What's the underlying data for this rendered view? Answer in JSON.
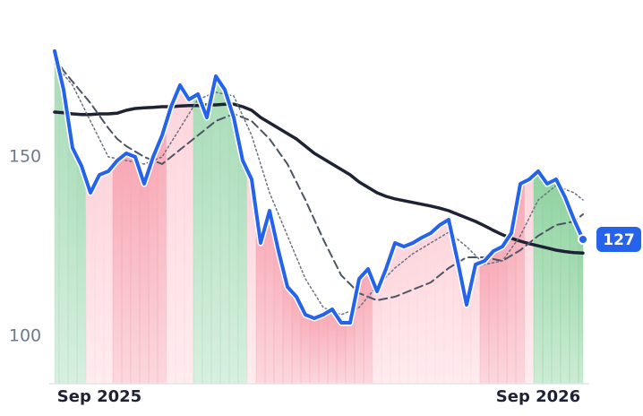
{
  "chart_data": {
    "type": "line",
    "categories": [
      null,
      null,
      null,
      null,
      null,
      "Sep 2025",
      null,
      null,
      null,
      null,
      null,
      null,
      null,
      null,
      null,
      null,
      null,
      null,
      null,
      null,
      null,
      null,
      null,
      null,
      null,
      null,
      null,
      null,
      null,
      null,
      null,
      null,
      null,
      null,
      null,
      null,
      null,
      null,
      null,
      null,
      null,
      null,
      null,
      null,
      null,
      null,
      null,
      null,
      null,
      null,
      null,
      null,
      null,
      null,
      "Sep 2026",
      null,
      null,
      null,
      null,
      null
    ],
    "series": [
      {
        "color": "#2563eb",
        "style": "solid",
        "width": 4,
        "values": [
          179.5,
          168.75,
          152.5,
          147.5,
          140,
          145,
          146,
          149,
          151,
          150,
          142.5,
          150,
          156,
          164,
          170,
          166,
          167.5,
          161,
          172.5,
          168.75,
          161,
          149,
          143.75,
          126,
          135,
          123.75,
          113.75,
          111,
          106,
          105,
          106,
          107.5,
          103.75,
          103.75,
          116,
          118.75,
          112.5,
          118.75,
          126,
          125,
          126,
          127.5,
          128.75,
          131,
          132.5,
          121,
          108.75,
          120,
          121,
          123.75,
          125,
          128.75,
          142.5,
          143.75,
          146,
          142.5,
          143.75,
          138.75,
          132.5,
          127
        ]
      },
      {
        "color": "#1e2235",
        "style": "solid",
        "width": 3.5,
        "values": [
          162.5,
          162.3,
          162,
          161.8,
          161.8,
          162,
          162,
          162.2,
          163,
          163.5,
          163.7,
          163.8,
          164,
          164,
          164.2,
          164.3,
          164.3,
          164.5,
          164.5,
          164.7,
          164.7,
          164,
          163,
          161,
          159.5,
          158,
          156.5,
          155,
          153,
          151,
          149.5,
          148,
          146.5,
          145,
          143,
          141.5,
          140,
          139,
          138.3,
          137.8,
          137.3,
          136.8,
          136.3,
          135.7,
          135,
          134,
          133,
          132,
          130.8,
          129.5,
          128.3,
          127.3,
          126.5,
          125.8,
          125.2,
          124.6,
          124,
          123.6,
          123.3,
          123.2
        ]
      },
      {
        "color": "#4b5563",
        "style": "dashed",
        "width": 2,
        "values": [
          178,
          174,
          171,
          168,
          165,
          161.5,
          158,
          155,
          153,
          151.5,
          150,
          149,
          148,
          150,
          152,
          154,
          156,
          158,
          160,
          161,
          162,
          161,
          160,
          157.5,
          155,
          151.5,
          148,
          143,
          138,
          132.5,
          127,
          122,
          117,
          114.5,
          112,
          111,
          110,
          110.5,
          111,
          112,
          113,
          114,
          115,
          117,
          119,
          120.5,
          122,
          122,
          122,
          121.5,
          121,
          122.5,
          124,
          126,
          128,
          129.5,
          131,
          131.5,
          132,
          134
        ]
      },
      {
        "color": "#6b7280",
        "style": "dotted",
        "width": 1.5,
        "values": [
          176,
          173,
          170,
          165,
          160,
          155,
          150,
          149.5,
          149,
          148.5,
          148,
          149,
          150,
          154,
          158,
          162,
          166,
          167,
          168,
          167.5,
          167,
          161.5,
          156,
          148,
          140,
          134,
          128,
          122,
          116,
          112,
          108,
          107,
          106,
          107,
          108,
          111,
          114,
          116.5,
          119,
          121,
          123,
          124.5,
          126,
          127.5,
          129,
          127,
          125,
          122.5,
          120,
          120.5,
          121,
          124.5,
          128,
          133,
          138,
          140,
          142,
          141,
          140,
          138
        ]
      }
    ],
    "fill_colors": [
      "#a8dcb8",
      "#a8dcb8",
      "#a8dcb8",
      "#a8dcb8",
      "#fdd5dc",
      "#fdd5dc",
      "#fdd5dc",
      "#f7a8b5",
      "#f7a8b5",
      "#f7a8b5",
      "#f7a8b5",
      "#f7a8b5",
      "#f7a8b5",
      "#fdd5dc",
      "#fdd5dc",
      "#fdd5dc",
      "#a8dcb8",
      "#a8dcb8",
      "#a8dcb8",
      "#a8dcb8",
      "#a8dcb8",
      "#a8dcb8",
      "#fdd5dc",
      "#f7a8b5",
      "#f7a8b5",
      "#f7a8b5",
      "#f7a8b5",
      "#f7a8b5",
      "#f7a8b5",
      "#f7a8b5",
      "#f7a8b5",
      "#f7a8b5",
      "#f7a8b5",
      "#f7a8b5",
      "#f7a8b5",
      "#f7a8b5",
      "#fdd5dc",
      "#fdd5dc",
      "#fdd5dc",
      "#fdd5dc",
      "#fdd5dc",
      "#fdd5dc",
      "#fdd5dc",
      "#fdd5dc",
      "#fdd5dc",
      "#fdd5dc",
      "#fdd5dc",
      "#fdd5dc",
      "#f7a8b5",
      "#f7a8b5",
      "#f7a8b5",
      "#f7a8b5",
      "#f7a8b5",
      "#fdd5dc",
      "#8fd3a0",
      "#8fd3a0",
      "#8fd3a0",
      "#8fd3a0",
      "#8fd3a0",
      "#8fd3a0"
    ],
    "ylim": [
      86.75,
      183.75
    ],
    "yticks": [
      100,
      150
    ]
  }
}
